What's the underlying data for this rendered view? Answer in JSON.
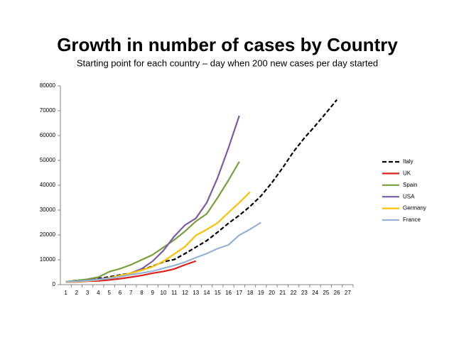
{
  "chart_data": {
    "type": "line",
    "title": "Growth in number of cases by Country",
    "subtitle": "Starting point for each country – day when 200 new cases per day started",
    "categories": [
      1,
      2,
      3,
      4,
      5,
      6,
      7,
      8,
      9,
      10,
      11,
      12,
      13,
      14,
      15,
      16,
      17,
      18,
      19,
      20,
      21,
      22,
      23,
      24,
      25,
      26,
      27
    ],
    "ylim": [
      0,
      80000
    ],
    "yticks": [
      0,
      10000,
      20000,
      30000,
      40000,
      50000,
      60000,
      70000,
      80000
    ],
    "grid": false,
    "legend": "right",
    "series": [
      {
        "name": "Italy",
        "color": "#000000",
        "style": "dashed",
        "values": [
          1100,
          1700,
          2000,
          2500,
          3100,
          3900,
          4600,
          5900,
          7400,
          9200,
          10100,
          12500,
          15100,
          17700,
          21100,
          24700,
          27900,
          31500,
          35700,
          41000,
          47000,
          53500,
          59000,
          63900,
          69100,
          74400,
          null
        ]
      },
      {
        "name": "UK",
        "color": "#e0201b",
        "style": "solid",
        "values": [
          1000,
          1100,
          1400,
          1500,
          1900,
          2400,
          3000,
          3700,
          4600,
          5300,
          6300,
          8000,
          9500,
          null,
          null,
          null,
          null,
          null,
          null,
          null,
          null,
          null,
          null,
          null,
          null,
          null,
          null
        ]
      },
      {
        "name": "Spain",
        "color": "#77a03a",
        "style": "solid",
        "values": [
          1200,
          1600,
          2200,
          3000,
          5200,
          6400,
          8000,
          10000,
          12000,
          15000,
          18000,
          21500,
          25500,
          28500,
          35000,
          42000,
          49500,
          null,
          null,
          null,
          null,
          null,
          null,
          null,
          null,
          null,
          null
        ]
      },
      {
        "name": "USA",
        "color": "#7c5ba6",
        "style": "solid",
        "values": [
          1000,
          1300,
          1700,
          2200,
          2700,
          3500,
          4600,
          6400,
          9400,
          13700,
          19400,
          24000,
          26700,
          33000,
          43000,
          55000,
          68000,
          null,
          null,
          null,
          null,
          null,
          null,
          null,
          null,
          null,
          null
        ]
      },
      {
        "name": "Germany",
        "color": "#ffc000",
        "style": "solid",
        "values": [
          1000,
          1200,
          1500,
          1900,
          2700,
          3700,
          4600,
          5800,
          7200,
          9400,
          12300,
          15300,
          19800,
          22200,
          24800,
          29000,
          33000,
          37300,
          null,
          null,
          null,
          null,
          null,
          null,
          null,
          null,
          null
        ]
      },
      {
        "name": "France",
        "color": "#95b3d7",
        "style": "solid",
        "values": [
          1100,
          1300,
          1600,
          2000,
          2500,
          3200,
          4000,
          4700,
          5400,
          6600,
          7700,
          9100,
          10900,
          12500,
          14500,
          16000,
          19900,
          22300,
          25000,
          null,
          null,
          null,
          null,
          null,
          null,
          null,
          null
        ]
      }
    ]
  }
}
